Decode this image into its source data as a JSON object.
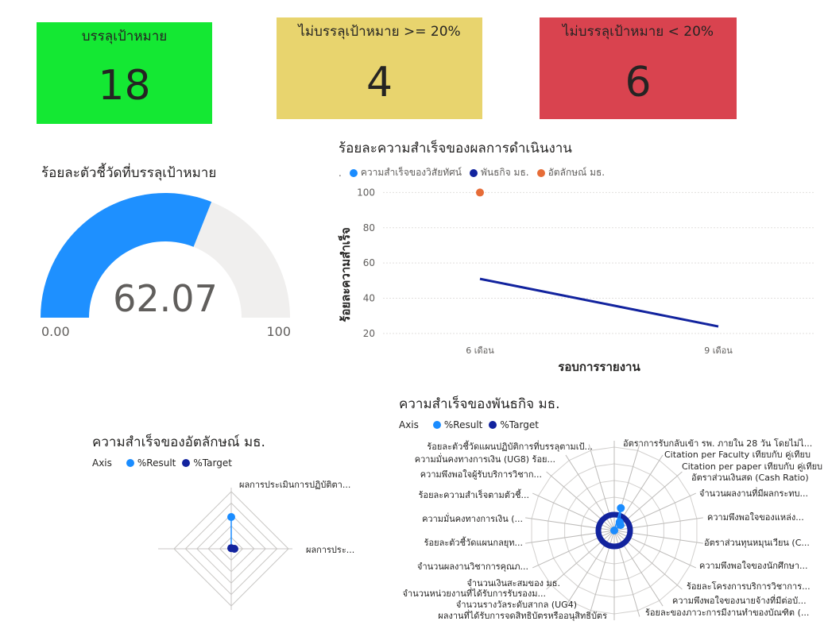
{
  "cards": [
    {
      "label": "บรรลุเป้าหมาย",
      "value": "18",
      "color": "#14e833"
    },
    {
      "label": "ไม่บรรลุเป้าหมาย >= 20%",
      "value": "4",
      "color": "#e8d46e"
    },
    {
      "label": "ไม่บรรลุเป้าหมาย < 20%",
      "value": "6",
      "color": "#d9434f"
    }
  ],
  "gauge": {
    "title": "ร้อยละตัวชี้วัดที่บรรลุเป้าหมาย",
    "value": 62.07,
    "value_label": "62.07",
    "min_label": "0.00",
    "max_label": "100",
    "colors": {
      "fill": "#1e90ff",
      "track": "#f0efee"
    }
  },
  "line_chart": {
    "title": "ร้อยละความสำเร็จของผลการดำเนินงาน",
    "legend_prefix": ".",
    "legend": [
      {
        "name": "ความสำเร็จของวิสัยทัศน์",
        "color": "#1a8cff"
      },
      {
        "name": "พันธกิจ มธ.",
        "color": "#12239e"
      },
      {
        "name": "อัตลักษณ์ มธ.",
        "color": "#e66c37"
      }
    ],
    "ylabel": "ร้อยละความสำเร็จ",
    "xlabel": "รอบการรายงาน"
  },
  "radar_left": {
    "title": "ความสำเร็จของอัตลักษณ์ มธ.",
    "legend_axis": "Axis",
    "legend": [
      {
        "name": "%Result",
        "color": "#1a8cff"
      },
      {
        "name": "%Target",
        "color": "#12239e"
      }
    ],
    "axis_labels": [
      "ผลการประเมินการปฏิบัติตา...",
      "ผลการประ..."
    ]
  },
  "radar_right": {
    "title": "ความสำเร็จของพันธกิจ มธ.",
    "legend_axis": "Axis",
    "legend": [
      {
        "name": "%Result",
        "color": "#1a8cff"
      },
      {
        "name": "%Target",
        "color": "#12239e"
      }
    ],
    "right_labels": [
      "อัตราการรับกลับเข้า รพ. ภายใน 28 วัน โดยไม่ไ...",
      "Citation per Faculty เทียบกับ คู่เทียบ",
      "Citation per paper เทียบกับ คู่เทียบ",
      "อัตราส่วนเงินสด (Cash Ratio)",
      "จำนวนผลงานที่มีผลกระทบ...",
      "ความพึงพอใจของแหล่ง...",
      "อัตราส่วนทุนหมุนเวียน (C...",
      "ความพึงพอใจของนักศึกษา...",
      "ร้อยละโครงการบริการวิชาการ...",
      "ความพึงพอใจของนายจ้างที่มีต่อบั...",
      "ร้อยละของภาวะการมีงานทำของบัณฑิต (..."
    ],
    "left_labels": [
      "ร้อยละตัวชี้วัดแผนปฏิบัติการที่บรรลุตามเป้...",
      "ความมั่นคงทางการเงิน (UG8) ร้อย...",
      "ความพึงพอใจผู้รับบริการวิชาก...",
      "ร้อยละความสำเร็จตามตัวชี้...",
      "ความมั่นคงทางการเงิน (...",
      "ร้อยละตัวชี้วัดแผนกลยุท...",
      "จำนวนผลงานวิชาการคุณภ...",
      "จำนวนเงินสะสมของ มธ.",
      "จำนวนหน่วยงานที่ได้รับการรับรองม...",
      "จำนวนรางวัลระดับสากล (UG4)",
      "ผลงานที่ได้รับการจดสิทธิบัตรหรืออนุสิทธิบัตร"
    ]
  },
  "chart_data": [
    {
      "type": "gauge",
      "title": "ร้อยละตัวชี้วัดที่บรรลุเป้าหมาย",
      "value": 62.07,
      "min": 0,
      "max": 100
    },
    {
      "type": "line",
      "title": "ร้อยละความสำเร็จของผลการดำเนินงาน",
      "categories": [
        "6 เดือน",
        "9 เดือน"
      ],
      "series": [
        {
          "name": "พันธกิจ มธ.",
          "values": [
            51,
            24
          ]
        },
        {
          "name": "อัตลักษณ์ มธ.",
          "values": [
            100,
            null
          ]
        }
      ],
      "xlabel": "รอบการรายงาน",
      "ylabel": "ร้อยละความสำเร็จ",
      "yticks": [
        20,
        40,
        60,
        80,
        100
      ],
      "ylim": [
        15,
        102
      ],
      "legend": "top-left",
      "grid": true
    },
    {
      "type": "radar",
      "title": "ความสำเร็จของอัตลักษณ์ มธ.",
      "axes": [
        "ผลการประเมินการปฏิบัติตา...",
        "ผลการประ..."
      ],
      "series": [
        {
          "name": "%Result",
          "values": [
            100,
            0
          ]
        },
        {
          "name": "%Target",
          "values": [
            2,
            10
          ]
        }
      ],
      "legend": "top-left"
    },
    {
      "type": "radar",
      "title": "ความสำเร็จของพันธกิจ มธ.",
      "axes_count": 22,
      "series": [
        {
          "name": "%Result",
          "values": [
            2,
            140,
            60,
            50,
            2,
            2,
            2,
            2,
            2,
            2,
            2,
            2,
            2,
            2,
            2,
            2,
            2,
            2,
            2,
            2,
            2,
            2
          ]
        },
        {
          "name": "%Target",
          "values": [
            2,
            2,
            2,
            2,
            2,
            2,
            2,
            2,
            2,
            2,
            2,
            2,
            2,
            2,
            2,
            2,
            2,
            2,
            2,
            2,
            2,
            2
          ]
        }
      ],
      "legend": "top-left"
    }
  ]
}
